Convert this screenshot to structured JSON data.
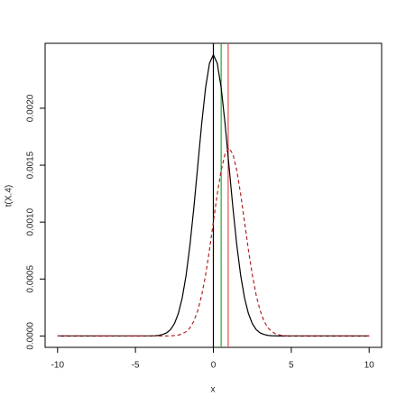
{
  "chart_data": {
    "type": "line",
    "xlabel": "x",
    "ylabel": "t(X.4)",
    "x": [
      -10,
      -4,
      -3.75,
      -3.5,
      -3.25,
      -3,
      -2.75,
      -2.5,
      -2.25,
      -2,
      -1.75,
      -1.5,
      -1.25,
      -1,
      -0.75,
      -0.5,
      -0.25,
      0,
      0.25,
      0.5,
      0.75,
      1,
      1.25,
      1.5,
      1.75,
      2,
      2.25,
      2.5,
      2.75,
      3,
      3.25,
      3.5,
      3.75,
      4,
      4.25,
      4.5,
      4.75,
      5,
      10
    ],
    "series": [
      {
        "color": "#000000",
        "dash": false,
        "values": [
          0,
          1e-06,
          2e-06,
          5e-06,
          1.3e-05,
          2.7e-05,
          5.6e-05,
          0.000108,
          0.000197,
          0.000334,
          0.000534,
          0.000802,
          0.001131,
          0.001498,
          0.001864,
          0.00218,
          0.002394,
          0.00247,
          0.002394,
          0.00218,
          0.001864,
          0.001498,
          0.001131,
          0.000802,
          0.000534,
          0.000334,
          0.000197,
          0.000108,
          5.6e-05,
          2.7e-05,
          1.3e-05,
          5e-06,
          2e-06,
          1e-06,
          0,
          0,
          0,
          0,
          0
        ]
      },
      {
        "color": "#b22222",
        "dash": true,
        "values": [
          0,
          0,
          0,
          0,
          0,
          0,
          1e-06,
          4e-06,
          8e-06,
          1.8e-05,
          3.8e-05,
          7.2e-05,
          0.000131,
          0.000223,
          0.000357,
          0.000536,
          0.000755,
          0.001001,
          0.001245,
          0.001456,
          0.001599,
          0.00165,
          0.001599,
          0.001456,
          0.001245,
          0.001001,
          0.000755,
          0.000536,
          0.000357,
          0.000223,
          0.000131,
          7.2e-05,
          3.8e-05,
          1.8e-05,
          8e-06,
          4e-06,
          1e-06,
          0,
          0
        ]
      }
    ],
    "vlines": [
      {
        "value": 0,
        "color": "#000000"
      },
      {
        "value": 0.5,
        "color": "#22aa22"
      },
      {
        "value": 0.95,
        "color": "#e05050"
      }
    ],
    "xlim": [
      -10.8,
      10.8
    ],
    "ylim": [
      -0.0001,
      0.00257
    ],
    "xticks": [
      -10,
      -5,
      0,
      5,
      10
    ],
    "yticks": [
      {
        "value": 0,
        "label": "0.0000"
      },
      {
        "value": 0.0005,
        "label": "0.0005"
      },
      {
        "value": 0.001,
        "label": "0.0010"
      },
      {
        "value": 0.0015,
        "label": "0.0015"
      },
      {
        "value": 0.002,
        "label": "0.0020"
      }
    ],
    "grid": false
  }
}
